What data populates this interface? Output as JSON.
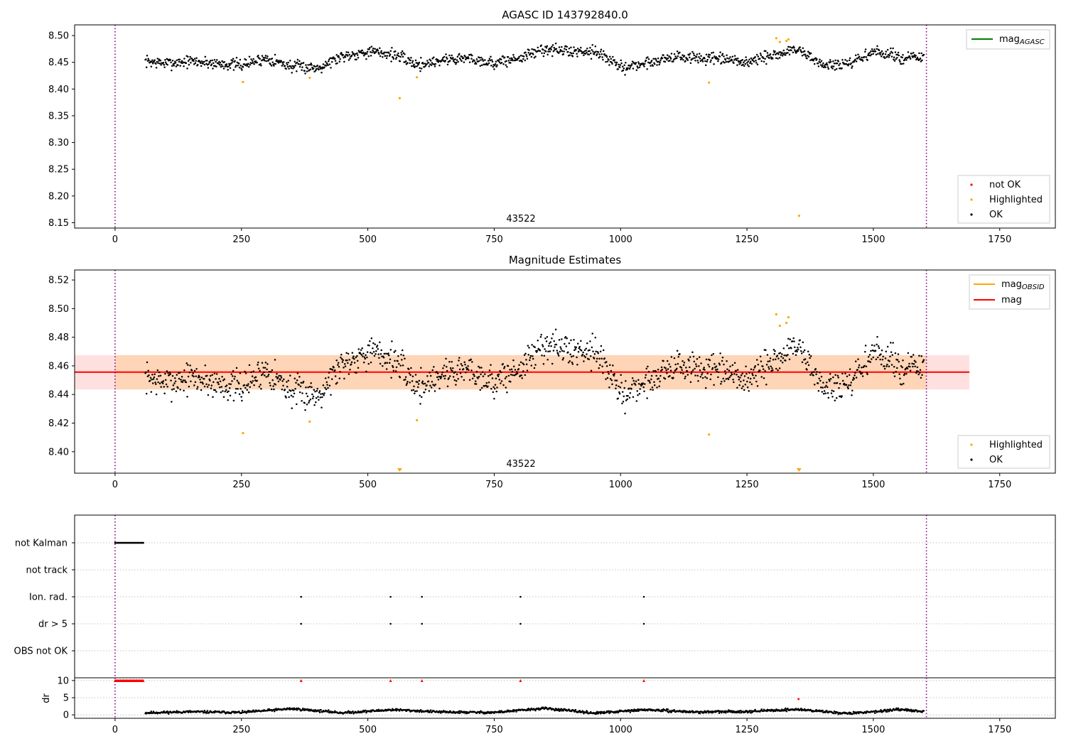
{
  "chart_data": [
    {
      "type": "scatter",
      "title": "AGASC ID 143792840.0",
      "x_range": [
        -80,
        1860
      ],
      "ylim": [
        8.14,
        8.52
      ],
      "x_ticks": [
        0,
        250,
        500,
        750,
        1000,
        1250,
        1500,
        1750
      ],
      "y_ticks": [
        8.15,
        8.2,
        8.25,
        8.3,
        8.35,
        8.4,
        8.45,
        8.5
      ],
      "y_tick_labels": [
        "8.15",
        "8.20",
        "8.25",
        "8.30",
        "8.35",
        "8.40",
        "8.45",
        "8.50"
      ],
      "vertical_lines": [
        0,
        1605
      ],
      "annotation": {
        "text": "43522",
        "x": 800
      },
      "line_legend": {
        "label": "mag",
        "subscript": "AGASC",
        "color": "#008000"
      },
      "scatter_legend": [
        {
          "label": "not OK",
          "color": "#ff0000"
        },
        {
          "label": "Highlighted",
          "color": "#ffa500"
        },
        {
          "label": "OK",
          "color": "#000000"
        }
      ],
      "series": [
        {
          "name": "OK",
          "color": "#000000",
          "x": [
            60,
            100,
            150,
            200,
            250,
            300,
            350,
            400,
            450,
            500,
            550,
            600,
            650,
            700,
            750,
            800,
            850,
            900,
            950,
            1000,
            1050,
            1100,
            1150,
            1200,
            1250,
            1300,
            1350,
            1400,
            1450,
            1500,
            1550,
            1600
          ],
          "y": [
            8.452,
            8.448,
            8.452,
            8.448,
            8.445,
            8.458,
            8.442,
            8.44,
            8.462,
            8.47,
            8.465,
            8.445,
            8.455,
            8.458,
            8.448,
            8.458,
            8.475,
            8.47,
            8.472,
            8.44,
            8.448,
            8.46,
            8.458,
            8.455,
            8.45,
            8.462,
            8.475,
            8.445,
            8.445,
            8.47,
            8.46,
            8.458
          ]
        },
        {
          "name": "Highlighted",
          "color": "#ffa500",
          "x": [
            253,
            385,
            563,
            597,
            1175,
            1308,
            1315,
            1328,
            1332,
            1353
          ],
          "y": [
            8.413,
            8.421,
            8.383,
            8.422,
            8.412,
            8.495,
            8.488,
            8.49,
            8.493,
            8.163
          ]
        }
      ]
    },
    {
      "type": "scatter",
      "title": "Magnitude Estimates",
      "x_range": [
        -80,
        1860
      ],
      "ylim": [
        8.385,
        8.527
      ],
      "x_ticks": [
        0,
        250,
        500,
        750,
        1000,
        1250,
        1500,
        1750
      ],
      "y_ticks": [
        8.4,
        8.42,
        8.44,
        8.46,
        8.48,
        8.5,
        8.52
      ],
      "y_tick_labels": [
        "8.40",
        "8.42",
        "8.44",
        "8.46",
        "8.48",
        "8.50",
        "8.52"
      ],
      "vertical_lines": [
        0,
        1605
      ],
      "annotation": {
        "text": "43522",
        "x": 800
      },
      "mag_line": 8.4556,
      "mag_band": [
        8.4435,
        8.4675
      ],
      "band_x_range": [
        -80,
        1690
      ],
      "obsid_band_x_range": [
        0,
        1605
      ],
      "line_legend": [
        {
          "label": "mag",
          "subscript": "OBSID",
          "color": "#ffa500"
        },
        {
          "label": "mag",
          "subscript": "",
          "color": "#ff0000"
        }
      ],
      "scatter_legend": [
        {
          "label": "Highlighted",
          "color": "#ffa500"
        },
        {
          "label": "OK",
          "color": "#000000"
        }
      ],
      "series": [
        {
          "name": "OK",
          "color": "#000000",
          "x": [
            60,
            100,
            150,
            200,
            250,
            300,
            350,
            400,
            450,
            500,
            550,
            600,
            650,
            700,
            750,
            800,
            850,
            900,
            950,
            1000,
            1050,
            1100,
            1150,
            1200,
            1250,
            1300,
            1350,
            1400,
            1450,
            1500,
            1550,
            1600
          ],
          "y": [
            8.452,
            8.448,
            8.452,
            8.448,
            8.445,
            8.458,
            8.442,
            8.44,
            8.462,
            8.47,
            8.465,
            8.445,
            8.455,
            8.458,
            8.448,
            8.458,
            8.475,
            8.47,
            8.472,
            8.44,
            8.448,
            8.46,
            8.458,
            8.455,
            8.45,
            8.462,
            8.475,
            8.445,
            8.445,
            8.47,
            8.46,
            8.458
          ]
        },
        {
          "name": "Highlighted",
          "color": "#ffa500",
          "x": [
            253,
            385,
            563,
            597,
            1175,
            1308,
            1315,
            1328,
            1332,
            1353
          ],
          "y": [
            8.413,
            8.421,
            8.386,
            8.422,
            8.412,
            8.496,
            8.488,
            8.49,
            8.494,
            8.386
          ]
        }
      ]
    },
    {
      "type": "scatter",
      "x_range": [
        -80,
        1860
      ],
      "flag_rows": [
        "not Kalman",
        "not track",
        "Ion. rad.",
        "dr > 5",
        "OBS not OK"
      ],
      "flags": {
        "not Kalman": [
          0,
          56
        ],
        "Ion. rad.": [
          368,
          545,
          607,
          802,
          1046
        ],
        "dr > 5": [
          368,
          545,
          607,
          802,
          1046
        ]
      },
      "vertical_lines": [
        0,
        1605
      ]
    },
    {
      "type": "scatter",
      "ylabel": "dr",
      "x_range": [
        -80,
        1860
      ],
      "ylim": [
        -1,
        10.8
      ],
      "x_ticks": [
        0,
        250,
        500,
        750,
        1000,
        1250,
        1500,
        1750
      ],
      "y_ticks": [
        0,
        5,
        10
      ],
      "y_tick_labels": [
        "0",
        "5",
        "10"
      ],
      "vertical_lines": [
        0,
        1605
      ],
      "clipped_dr_x": [
        0,
        56,
        368,
        545,
        607,
        802,
        1046
      ],
      "clipped_dr_y": 10,
      "red_point": {
        "x": 1352,
        "y": 4.6
      },
      "series": [
        {
          "name": "dr",
          "color": "#000000",
          "x": [
            60,
            150,
            250,
            350,
            450,
            550,
            650,
            750,
            850,
            950,
            1050,
            1150,
            1250,
            1350,
            1450,
            1550,
            1600
          ],
          "y": [
            0.6,
            0.9,
            0.7,
            1.8,
            0.6,
            1.5,
            0.8,
            0.7,
            1.9,
            0.5,
            1.5,
            0.8,
            1.0,
            1.6,
            0.4,
            1.5,
            1.0
          ]
        }
      ]
    }
  ]
}
